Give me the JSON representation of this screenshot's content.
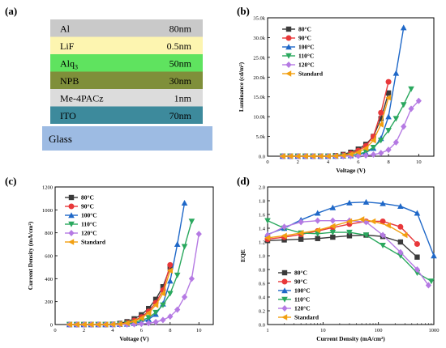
{
  "panel_a": {
    "label": "(a)",
    "layers": [
      {
        "name": "Al",
        "thickness": "80nm",
        "color": "#c9c9c9"
      },
      {
        "name": "LiF",
        "thickness": "0.5nm",
        "color": "#fdf5b0"
      },
      {
        "name": "Alq",
        "sub": "3",
        "thickness": "50nm",
        "color": "#5fe35f"
      },
      {
        "name": "NPB",
        "thickness": "30nm",
        "color": "#7f8f3a"
      },
      {
        "name": "Me-4PACz",
        "thickness": "1nm",
        "color": "#dcdcdc"
      },
      {
        "name": "ITO",
        "thickness": "70nm",
        "color": "#3d8a9c"
      }
    ],
    "substrate": {
      "name": "Glass",
      "color": "#9dbbe3"
    }
  },
  "colors": {
    "80°C": "#3a3a3a",
    "90°C": "#e8383a",
    "100°C": "#1f68c8",
    "110°C": "#2aa85e",
    "120°C": "#b57ae3",
    "Standard": "#f2a011"
  },
  "chart_data": [
    {
      "id": "b",
      "label": "(b)",
      "type": "line",
      "xlabel": "Voltage (V)",
      "ylabel": "Luminance (cd/m²)",
      "xlim": [
        0,
        11
      ],
      "ylim": [
        0,
        35000
      ],
      "xticks": [
        0,
        2,
        4,
        6,
        8,
        10
      ],
      "yticks": [
        0,
        5000,
        10000,
        15000,
        20000,
        25000,
        30000,
        35000
      ],
      "ytick_labels": [
        "0.0",
        "5.0k",
        "10.0k",
        "15.0k",
        "20.0k",
        "25.0k",
        "30.0k",
        "35.0k"
      ],
      "legend": [
        "80°C",
        "90°C",
        "100°C",
        "110°C",
        "120°C",
        "Standard"
      ],
      "series": [
        {
          "name": "80°C",
          "marker": "square",
          "x": [
            1,
            1.5,
            2,
            2.5,
            3,
            3.5,
            4,
            4.5,
            5,
            5.5,
            6,
            6.5,
            7,
            7.5,
            8
          ],
          "y": [
            0,
            0,
            0,
            0,
            0,
            0,
            0,
            150,
            450,
            1000,
            1800,
            3000,
            5000,
            9500,
            16000
          ]
        },
        {
          "name": "90°C",
          "marker": "circle",
          "x": [
            1,
            1.5,
            2,
            2.5,
            3,
            3.5,
            4,
            4.5,
            5,
            5.5,
            6,
            6.5,
            7,
            7.5,
            8
          ],
          "y": [
            0,
            0,
            0,
            0,
            0,
            0,
            0,
            80,
            250,
            700,
            1400,
            2600,
            5000,
            11000,
            18800
          ]
        },
        {
          "name": "100°C",
          "marker": "triangle-up",
          "x": [
            1,
            1.5,
            2,
            2.5,
            3,
            3.5,
            4,
            4.5,
            5,
            5.5,
            6,
            6.5,
            7,
            7.5,
            8,
            8.5,
            9
          ],
          "y": [
            0,
            0,
            0,
            0,
            0,
            0,
            0,
            0,
            50,
            150,
            400,
            900,
            2000,
            4500,
            10000,
            21000,
            32500
          ]
        },
        {
          "name": "110°C",
          "marker": "triangle-down",
          "x": [
            1,
            1.5,
            2,
            2.5,
            3,
            3.5,
            4,
            4.5,
            5,
            5.5,
            6,
            6.5,
            7,
            7.5,
            8,
            8.5,
            9,
            9.5
          ],
          "y": [
            0,
            0,
            0,
            0,
            0,
            0,
            0,
            0,
            60,
            200,
            500,
            1100,
            2200,
            4000,
            6500,
            9500,
            13000,
            17000
          ]
        },
        {
          "name": "120°C",
          "marker": "diamond",
          "x": [
            1,
            1.5,
            2,
            2.5,
            3,
            3.5,
            4,
            4.5,
            5,
            5.5,
            6,
            6.5,
            7,
            7.5,
            8,
            8.5,
            9,
            9.5,
            10
          ],
          "y": [
            0,
            0,
            0,
            0,
            0,
            0,
            0,
            0,
            0,
            30,
            80,
            200,
            400,
            800,
            1600,
            3500,
            7500,
            12000,
            14000
          ]
        },
        {
          "name": "Standard",
          "marker": "triangle-left",
          "x": [
            1,
            1.5,
            2,
            2.5,
            3,
            3.5,
            4,
            4.5,
            5,
            5.5,
            6,
            6.5,
            7,
            7.5,
            8
          ],
          "y": [
            0,
            0,
            0,
            0,
            0,
            0,
            0,
            50,
            200,
            500,
            1000,
            2000,
            4000,
            8000,
            14800
          ]
        }
      ]
    },
    {
      "id": "c",
      "label": "(c)",
      "type": "line",
      "xlabel": "Voltage (V)",
      "ylabel": "Current Density (mA/cm²)",
      "xlim": [
        0,
        11
      ],
      "ylim": [
        0,
        1200
      ],
      "xticks": [
        0,
        2,
        4,
        6,
        8,
        10
      ],
      "yticks": [
        0,
        200,
        400,
        600,
        800,
        1000,
        1200
      ],
      "ytick_labels": [
        "0",
        "200",
        "400",
        "600",
        "800",
        "1000",
        "1200"
      ],
      "legend": [
        "80°C",
        "90°C",
        "100°C",
        "110°C",
        "120°C",
        "Standard"
      ],
      "series": [
        {
          "name": "80°C",
          "marker": "square",
          "x": [
            1,
            1.5,
            2,
            2.5,
            3,
            3.5,
            4,
            4.5,
            5,
            5.5,
            6,
            6.5,
            7,
            7.5,
            8
          ],
          "y": [
            0,
            0,
            0,
            0,
            0,
            0,
            3,
            10,
            25,
            50,
            85,
            140,
            220,
            330,
            500
          ]
        },
        {
          "name": "90°C",
          "marker": "circle",
          "x": [
            1,
            1.5,
            2,
            2.5,
            3,
            3.5,
            4,
            4.5,
            5,
            5.5,
            6,
            6.5,
            7,
            7.5,
            8
          ],
          "y": [
            0,
            0,
            0,
            0,
            0,
            0,
            1,
            5,
            15,
            35,
            65,
            115,
            190,
            300,
            520
          ]
        },
        {
          "name": "100°C",
          "marker": "triangle-up",
          "x": [
            1,
            1.5,
            2,
            2.5,
            3,
            3.5,
            4,
            4.5,
            5,
            5.5,
            6,
            6.5,
            7,
            7.5,
            8,
            8.5,
            9
          ],
          "y": [
            0,
            0,
            0,
            0,
            0,
            0,
            0,
            1,
            4,
            10,
            22,
            45,
            90,
            180,
            380,
            700,
            1060
          ]
        },
        {
          "name": "110°C",
          "marker": "triangle-down",
          "x": [
            1,
            1.5,
            2,
            2.5,
            3,
            3.5,
            4,
            4.5,
            5,
            5.5,
            6,
            6.5,
            7,
            7.5,
            8,
            8.5,
            9,
            9.5
          ],
          "y": [
            0,
            0,
            0,
            0,
            0,
            0,
            1,
            3,
            8,
            18,
            35,
            60,
            105,
            170,
            270,
            430,
            680,
            900
          ]
        },
        {
          "name": "120°C",
          "marker": "diamond",
          "x": [
            1,
            1.5,
            2,
            2.5,
            3,
            3.5,
            4,
            4.5,
            5,
            5.5,
            6,
            6.5,
            7,
            7.5,
            8,
            8.5,
            9,
            9.5,
            10
          ],
          "y": [
            0,
            0,
            0,
            0,
            0,
            0,
            0,
            0,
            1,
            3,
            6,
            12,
            22,
            40,
            70,
            130,
            240,
            400,
            790
          ]
        },
        {
          "name": "Standard",
          "marker": "triangle-left",
          "x": [
            1,
            1.5,
            2,
            2.5,
            3,
            3.5,
            4,
            4.5,
            5,
            5.5,
            6,
            6.5,
            7,
            7.5,
            8
          ],
          "y": [
            0,
            0,
            0,
            0,
            0,
            0,
            1,
            4,
            12,
            28,
            55,
            100,
            170,
            270,
            470
          ]
        }
      ]
    },
    {
      "id": "d",
      "label": "(d)",
      "type": "line",
      "xscale": "log",
      "xlabel": "Current Density (mA/cm²)",
      "ylabel": "EQE",
      "xlim": [
        1,
        1000
      ],
      "ylim": [
        0,
        2.0
      ],
      "xticks": [
        1,
        10,
        100,
        1000
      ],
      "xtick_labels": [
        "1",
        "10",
        "100",
        "1000"
      ],
      "yticks": [
        0,
        0.2,
        0.4,
        0.6,
        0.8,
        1.0,
        1.2,
        1.4,
        1.6,
        1.8,
        2.0
      ],
      "ytick_labels": [
        "0.0",
        "0.2",
        "0.4",
        "0.6",
        "0.8",
        "1.0",
        "1.2",
        "1.4",
        "1.6",
        "1.8",
        "2.0"
      ],
      "legend": [
        "80°C",
        "90°C",
        "100°C",
        "110°C",
        "120°C",
        "Standard"
      ],
      "series": [
        {
          "name": "80°C",
          "marker": "square",
          "x": [
            1,
            2,
            4,
            8,
            15,
            30,
            60,
            120,
            250,
            500
          ],
          "y": [
            1.22,
            1.23,
            1.24,
            1.25,
            1.27,
            1.29,
            1.3,
            1.28,
            1.2,
            0.98
          ]
        },
        {
          "name": "90°C",
          "marker": "circle",
          "x": [
            1,
            2,
            4,
            8,
            15,
            30,
            60,
            120,
            250,
            500
          ],
          "y": [
            1.24,
            1.27,
            1.31,
            1.36,
            1.41,
            1.46,
            1.5,
            1.5,
            1.42,
            1.17
          ]
        },
        {
          "name": "100°C",
          "marker": "triangle-up",
          "x": [
            1,
            2,
            4,
            8,
            15,
            30,
            60,
            120,
            250,
            500,
            1000
          ],
          "y": [
            1.31,
            1.4,
            1.52,
            1.62,
            1.7,
            1.77,
            1.78,
            1.76,
            1.72,
            1.62,
            1.0
          ]
        },
        {
          "name": "110°C",
          "marker": "triangle-down",
          "x": [
            1,
            2,
            4,
            8,
            15,
            30,
            60,
            120,
            250,
            500,
            900
          ],
          "y": [
            1.51,
            1.4,
            1.33,
            1.32,
            1.34,
            1.34,
            1.3,
            1.15,
            1.0,
            0.75,
            0.63
          ]
        },
        {
          "name": "120°C",
          "marker": "diamond",
          "x": [
            1,
            2,
            4,
            8,
            15,
            30,
            60,
            120,
            250,
            500,
            800
          ],
          "y": [
            1.3,
            1.42,
            1.49,
            1.51,
            1.51,
            1.51,
            1.49,
            1.3,
            1.05,
            0.8,
            0.57
          ]
        },
        {
          "name": "Standard",
          "marker": "triangle-left",
          "x": [
            1,
            2,
            4,
            8,
            15,
            30,
            50,
            80,
            150,
            300
          ],
          "y": [
            1.26,
            1.29,
            1.33,
            1.37,
            1.43,
            1.5,
            1.53,
            1.5,
            1.44,
            1.3
          ]
        }
      ]
    }
  ]
}
